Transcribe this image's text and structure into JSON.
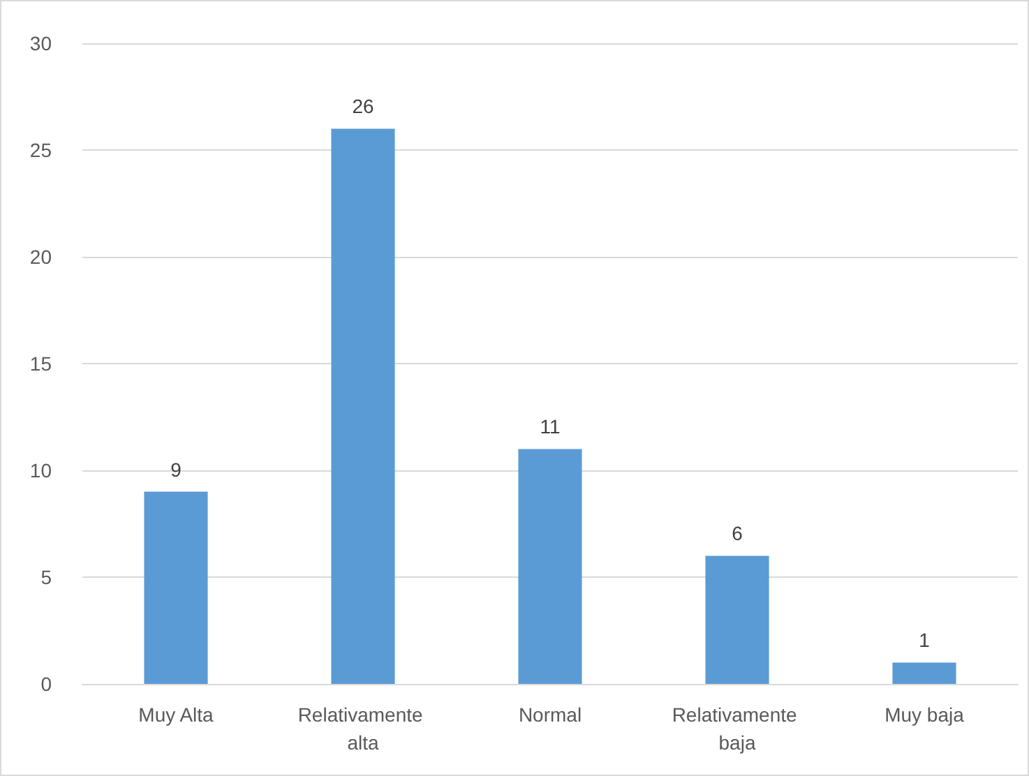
{
  "chart_data": {
    "type": "bar",
    "categories": [
      "Muy Alta",
      "Relativamente alta",
      "Normal",
      "Relativamente baja",
      "Muy baja"
    ],
    "values": [
      9,
      26,
      11,
      6,
      1
    ],
    "color": "#5b9bd5",
    "ylim": [
      0,
      30
    ],
    "yticks": [
      0,
      5,
      10,
      15,
      20,
      25,
      30
    ],
    "grid": "y",
    "data_labels": true
  }
}
